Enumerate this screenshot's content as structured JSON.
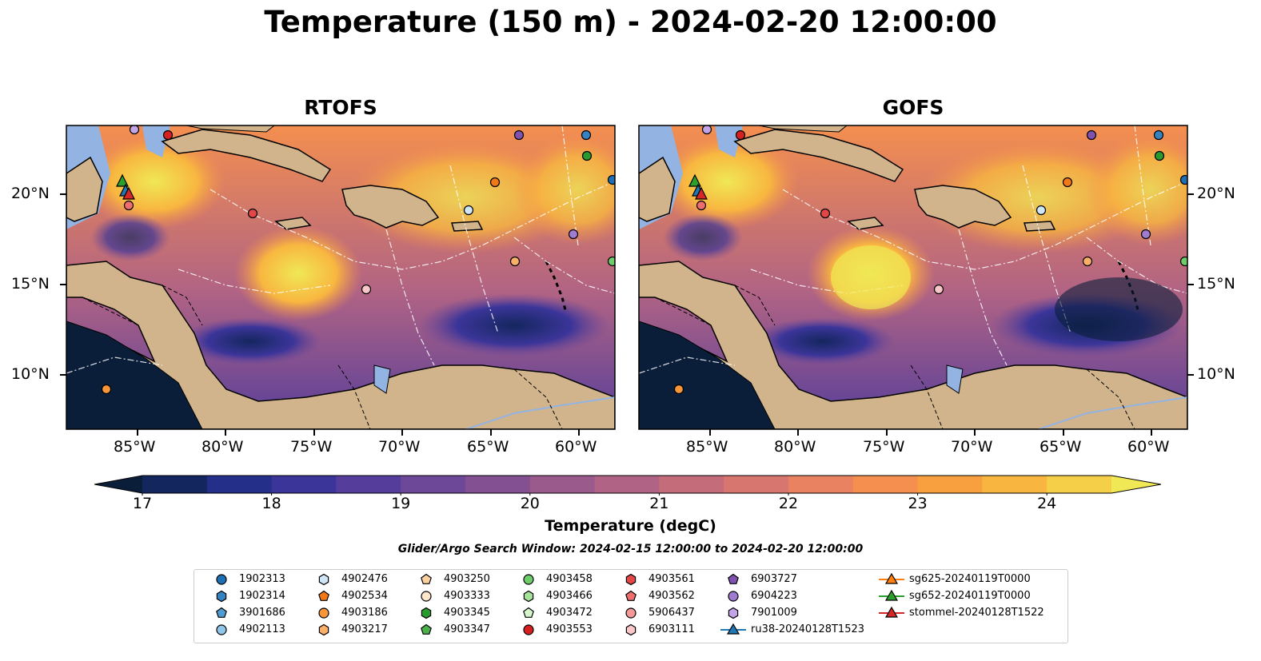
{
  "title": "Temperature (150 m) - 2024-02-20 12:00:00",
  "panels": [
    {
      "title": "RTOFS"
    },
    {
      "title": "GOFS"
    }
  ],
  "lon_ticks": [
    "85°W",
    "80°W",
    "75°W",
    "70°W",
    "65°W",
    "60°W"
  ],
  "lat_ticks": [
    "20°N",
    "15°N",
    "10°N"
  ],
  "colorbar": {
    "label": "Temperature (degC)",
    "ticks": [
      "17",
      "18",
      "19",
      "20",
      "21",
      "22",
      "23",
      "24"
    ],
    "colors": [
      "#0a1e3a",
      "#14265e",
      "#242f8a",
      "#3b3599",
      "#553e9b",
      "#6d4898",
      "#835192",
      "#9a5b8c",
      "#b06384",
      "#c56c7b",
      "#d7766f",
      "#e88260",
      "#f48f4f",
      "#f8a040",
      "#f8b640",
      "#f5cf48",
      "#f0e855"
    ]
  },
  "search_window": "Glider/Argo Search Window: 2024-02-15 12:00:00 to 2024-02-20 12:00:00",
  "legend": {
    "items": [
      {
        "label": "1902313",
        "marker": "circle",
        "color": "#1f6fb4"
      },
      {
        "label": "1902314",
        "marker": "hexagon",
        "color": "#3582c0"
      },
      {
        "label": "3901686",
        "marker": "pentagon",
        "color": "#4f9bd2"
      },
      {
        "label": "4902113",
        "marker": "circle",
        "color": "#90c6ea"
      },
      {
        "label": "4902476",
        "marker": "hexagon",
        "color": "#cfe6f6"
      },
      {
        "label": "4902534",
        "marker": "pentagon",
        "color": "#f07818"
      },
      {
        "label": "4903186",
        "marker": "circle",
        "color": "#f8963a"
      },
      {
        "label": "4903217",
        "marker": "hexagon",
        "color": "#fbb06a"
      },
      {
        "label": "4903250",
        "marker": "pentagon",
        "color": "#fdd0a0"
      },
      {
        "label": "4903333",
        "marker": "circle",
        "color": "#fee6cc"
      },
      {
        "label": "4903345",
        "marker": "hexagon",
        "color": "#2a9a2e"
      },
      {
        "label": "4903347",
        "marker": "pentagon",
        "color": "#4ab04a"
      },
      {
        "label": "4903458",
        "marker": "circle",
        "color": "#6fcc6a"
      },
      {
        "label": "4903466",
        "marker": "hexagon",
        "color": "#a6e39a"
      },
      {
        "label": "4903472",
        "marker": "pentagon",
        "color": "#d6f5cc"
      },
      {
        "label": "4903553",
        "marker": "circle",
        "color": "#d62020"
      },
      {
        "label": "4903561",
        "marker": "hexagon",
        "color": "#e24646"
      },
      {
        "label": "4903562",
        "marker": "pentagon",
        "color": "#ee6d6d"
      },
      {
        "label": "5906437",
        "marker": "circle",
        "color": "#f49898"
      },
      {
        "label": "6903111",
        "marker": "hexagon",
        "color": "#f9c7c7"
      },
      {
        "label": "6903727",
        "marker": "pentagon",
        "color": "#7f52b0"
      },
      {
        "label": "6904223",
        "marker": "circle",
        "color": "#a07cd0"
      },
      {
        "label": "7901009",
        "marker": "hexagon",
        "color": "#c3a4e6"
      },
      {
        "label": "ru38-20240128T1523",
        "marker": "triangle-line",
        "color": "#1f77b4"
      },
      {
        "label": "sg625-20240119T0000",
        "marker": "triangle-line",
        "color": "#ff7f0e"
      },
      {
        "label": "sg652-20240119T0000",
        "marker": "triangle-line",
        "color": "#2ca02c"
      },
      {
        "label": "stommel-20240128T1522",
        "marker": "triangle-line",
        "color": "#d62728"
      }
    ]
  }
}
